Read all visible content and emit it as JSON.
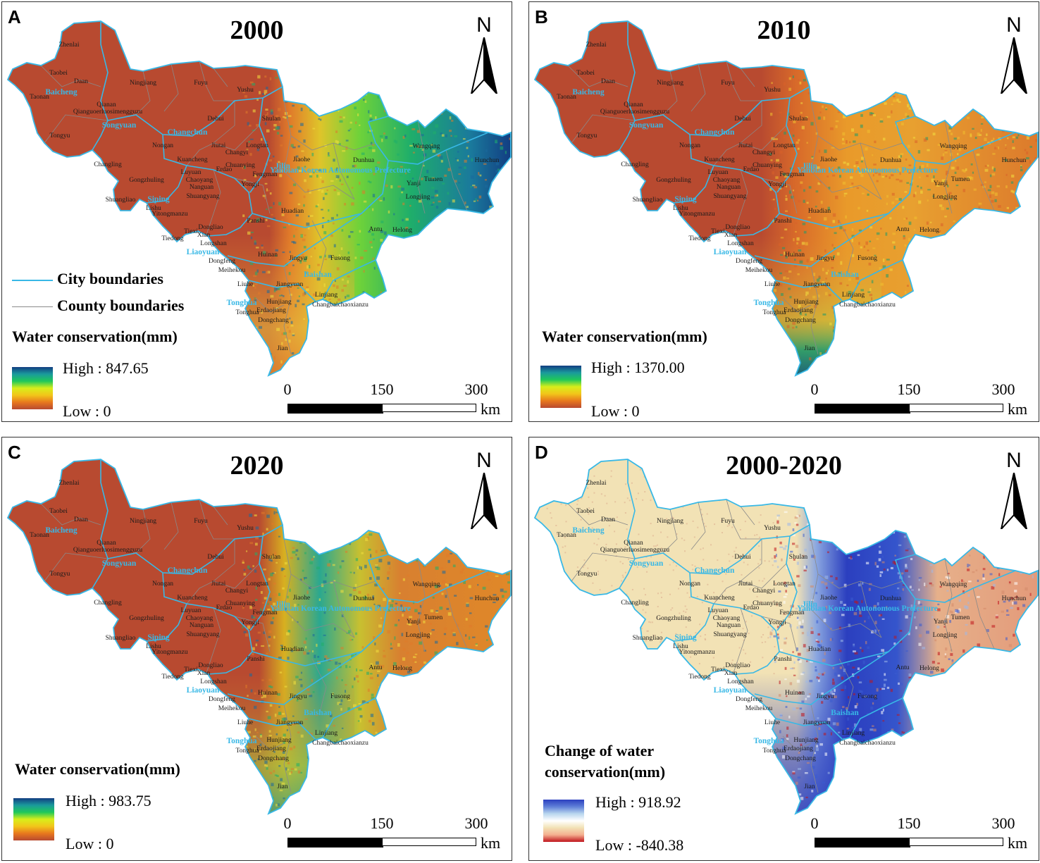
{
  "panels": [
    {
      "letter": "A",
      "year": "2000",
      "legend_title_1": "Water conservation(mm)",
      "legend_title_2": "",
      "high": "High : 847.65",
      "low": "Low : 0",
      "theme": "wc2000"
    },
    {
      "letter": "B",
      "year": "2010",
      "legend_title_1": "Water conservation(mm)",
      "legend_title_2": "",
      "high": "High : 1370.00",
      "low": "Low : 0",
      "theme": "wc2010"
    },
    {
      "letter": "C",
      "year": "2020",
      "legend_title_1": "Water conservation(mm)",
      "legend_title_2": "",
      "high": "High : 983.75",
      "low": "Low : 0",
      "theme": "wc2020"
    },
    {
      "letter": "D",
      "year": "2000-2020",
      "legend_title_1": "Change of water",
      "legend_title_2": "conservation(mm)",
      "high": "High : 918.92",
      "low": "Low : -840.38",
      "theme": "change"
    }
  ],
  "north_label": "N",
  "scale_bar": {
    "ticks": [
      "0",
      "150",
      "300"
    ],
    "unit": "km"
  },
  "boundary_legend": {
    "city": "City boundaries",
    "county": "County boundaries"
  },
  "colors": {
    "city_boundary": "#38b8e6",
    "county_boundary": "#8a8a8a",
    "low_wc": "#b84a30",
    "high_wc": "#123d82",
    "change_low": "#c0141c",
    "change_mid": "#f2e2b5",
    "change_high": "#2b3fbf"
  },
  "place_names": {
    "counties": [
      "Zhenlai",
      "Taobei",
      "Daan",
      "Taonan",
      "Tongyu",
      "Qianan",
      "Qianguoerluosimengguzu",
      "Ningjiang",
      "Fuyu",
      "Yushu",
      "Dehui",
      "Nongan",
      "Jiutai",
      "Shulan",
      "Kuancheng",
      "Changyi",
      "Chuanying",
      "Erdao",
      "Luyuan",
      "Chaoyang",
      "Nanguan",
      "Longtan",
      "Changling",
      "Gongzhuling",
      "Shuangyang",
      "Yongji",
      "Fengman",
      "Jiaohe",
      "Dunhua",
      "Wangqing",
      "Hunchun",
      "Yanji",
      "Tumen",
      "Longjing",
      "Helong",
      "Antu",
      "Huadian",
      "Panshi",
      "Shuangliao",
      "Lishu",
      "Yitongmanzu",
      "Tiexi",
      "Tiedong",
      "Dongliao",
      "Xian",
      "Longshan",
      "Dongfeng",
      "Meihekou",
      "Huinan",
      "Liuhe",
      "Jingyu",
      "Fusong",
      "Jiangyuan",
      "Hunjiang",
      "Linjiang",
      "Changbaichaoxianzu",
      "Tonghua",
      "Erdaojiang",
      "Dongchang",
      "Jian"
    ],
    "cities": [
      "Baicheng",
      "Songyuan",
      "Changchun",
      "Jilin",
      "Siping",
      "Liaoyuan",
      "Tonghua",
      "Baishan",
      "Yanbian Korean Autonomous Prefecture"
    ]
  }
}
